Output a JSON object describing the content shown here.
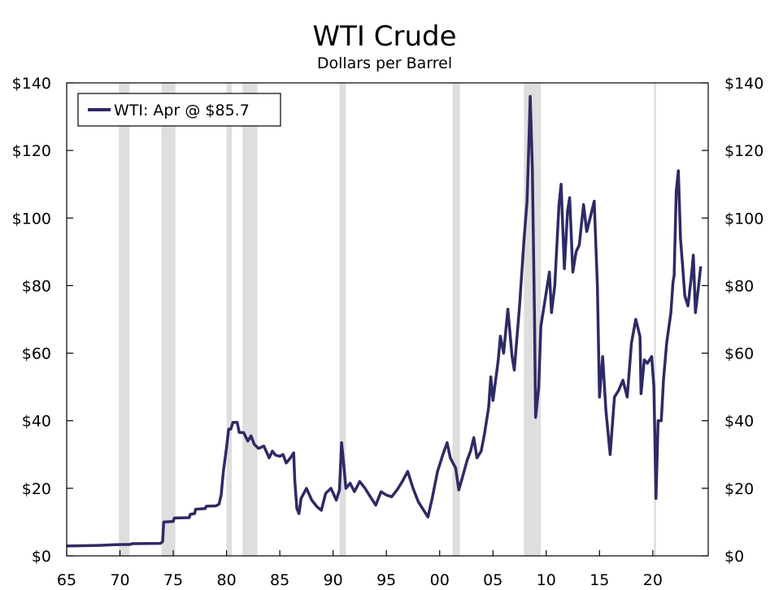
{
  "chart_data": {
    "type": "line",
    "title": "WTI Crude",
    "subtitle": "Dollars per Barrel",
    "xlabel": "",
    "ylabel": "",
    "xlim": [
      1965,
      2025.2
    ],
    "ylim": [
      0,
      140
    ],
    "y_ticks": [
      0,
      20,
      40,
      60,
      80,
      100,
      120,
      140
    ],
    "y_tick_labels": [
      "$0",
      "$20",
      "$40",
      "$60",
      "$80",
      "$100",
      "$120",
      "$140"
    ],
    "x_ticks": [
      1965,
      1970,
      1975,
      1980,
      1985,
      1990,
      1995,
      2000,
      2005,
      2010,
      2015,
      2020
    ],
    "x_tick_labels": [
      "65",
      "70",
      "75",
      "80",
      "85",
      "90",
      "95",
      "00",
      "05",
      "10",
      "15",
      "20"
    ],
    "legend": {
      "label": "WTI: Apr @ $85.7",
      "placement": "top-left"
    },
    "colors": {
      "line": "#2e2a64",
      "recession": "#dedede",
      "axis": "#000000"
    },
    "recessions": [
      [
        1969.9,
        1970.9
      ],
      [
        1973.9,
        1975.2
      ],
      [
        1980.0,
        1980.5
      ],
      [
        1981.5,
        1982.9
      ],
      [
        1990.6,
        1991.2
      ],
      [
        2001.2,
        2001.9
      ],
      [
        2007.9,
        2009.5
      ],
      [
        2020.1,
        2020.3
      ]
    ],
    "series": [
      {
        "name": "WTI",
        "points": [
          [
            1965.0,
            2.9
          ],
          [
            1968.0,
            3.1
          ],
          [
            1969.5,
            3.3
          ],
          [
            1971.0,
            3.4
          ],
          [
            1971.1,
            3.6
          ],
          [
            1973.8,
            3.7
          ],
          [
            1974.0,
            4.2
          ],
          [
            1974.1,
            10.0
          ],
          [
            1975.0,
            10.2
          ],
          [
            1975.1,
            11.2
          ],
          [
            1976.5,
            11.3
          ],
          [
            1976.6,
            12.3
          ],
          [
            1977.0,
            12.5
          ],
          [
            1977.1,
            13.8
          ],
          [
            1978.0,
            14.0
          ],
          [
            1978.1,
            14.7
          ],
          [
            1979.0,
            14.8
          ],
          [
            1979.3,
            15.3
          ],
          [
            1979.5,
            18.0
          ],
          [
            1979.7,
            25.0
          ],
          [
            1980.0,
            32.0
          ],
          [
            1980.2,
            37.5
          ],
          [
            1980.4,
            37.5
          ],
          [
            1980.6,
            39.5
          ],
          [
            1981.0,
            39.5
          ],
          [
            1981.2,
            36.5
          ],
          [
            1981.6,
            36.5
          ],
          [
            1982.0,
            34.0
          ],
          [
            1982.3,
            35.5
          ],
          [
            1982.6,
            33.0
          ],
          [
            1983.0,
            31.8
          ],
          [
            1983.5,
            32.5
          ],
          [
            1984.0,
            29.0
          ],
          [
            1984.3,
            31.0
          ],
          [
            1984.6,
            29.8
          ],
          [
            1985.0,
            29.5
          ],
          [
            1985.3,
            30.0
          ],
          [
            1985.6,
            27.5
          ],
          [
            1986.0,
            29.0
          ],
          [
            1986.3,
            30.5
          ],
          [
            1986.4,
            22.5
          ],
          [
            1986.6,
            14.0
          ],
          [
            1986.8,
            12.5
          ],
          [
            1987.0,
            17.0
          ],
          [
            1987.5,
            20.0
          ],
          [
            1988.0,
            16.5
          ],
          [
            1988.5,
            14.5
          ],
          [
            1988.9,
            13.5
          ],
          [
            1989.3,
            18.5
          ],
          [
            1989.8,
            20.0
          ],
          [
            1990.3,
            16.5
          ],
          [
            1990.6,
            19.5
          ],
          [
            1990.8,
            33.5
          ],
          [
            1991.0,
            27.0
          ],
          [
            1991.2,
            20.0
          ],
          [
            1991.6,
            21.5
          ],
          [
            1992.0,
            19.0
          ],
          [
            1992.5,
            22.0
          ],
          [
            1993.0,
            20.0
          ],
          [
            1993.5,
            17.5
          ],
          [
            1994.0,
            15.0
          ],
          [
            1994.5,
            19.0
          ],
          [
            1995.0,
            18.0
          ],
          [
            1995.5,
            17.5
          ],
          [
            1996.0,
            19.5
          ],
          [
            1996.5,
            22.0
          ],
          [
            1997.0,
            25.0
          ],
          [
            1997.5,
            20.0
          ],
          [
            1998.0,
            16.0
          ],
          [
            1998.5,
            13.5
          ],
          [
            1998.9,
            11.5
          ],
          [
            1999.3,
            17.0
          ],
          [
            1999.8,
            25.0
          ],
          [
            2000.3,
            30.0
          ],
          [
            2000.7,
            33.5
          ],
          [
            2001.0,
            29.0
          ],
          [
            2001.5,
            26.0
          ],
          [
            2001.8,
            19.5
          ],
          [
            2002.2,
            24.0
          ],
          [
            2002.6,
            28.5
          ],
          [
            2002.9,
            31.0
          ],
          [
            2003.2,
            35.0
          ],
          [
            2003.5,
            29.0
          ],
          [
            2003.9,
            31.0
          ],
          [
            2004.2,
            36.0
          ],
          [
            2004.6,
            44.0
          ],
          [
            2004.8,
            53.0
          ],
          [
            2005.0,
            46.0
          ],
          [
            2005.5,
            58.0
          ],
          [
            2005.7,
            65.0
          ],
          [
            2006.0,
            60.0
          ],
          [
            2006.4,
            73.0
          ],
          [
            2006.8,
            59.0
          ],
          [
            2007.0,
            55.0
          ],
          [
            2007.5,
            74.0
          ],
          [
            2007.9,
            93.0
          ],
          [
            2008.2,
            105.0
          ],
          [
            2008.4,
            125.0
          ],
          [
            2008.5,
            136.0
          ],
          [
            2008.7,
            115.0
          ],
          [
            2008.9,
            70.0
          ],
          [
            2009.0,
            41.0
          ],
          [
            2009.3,
            50.0
          ],
          [
            2009.5,
            68.0
          ],
          [
            2009.9,
            76.0
          ],
          [
            2010.3,
            84.0
          ],
          [
            2010.5,
            72.0
          ],
          [
            2010.8,
            80.0
          ],
          [
            2011.2,
            104.0
          ],
          [
            2011.4,
            110.0
          ],
          [
            2011.7,
            85.0
          ],
          [
            2012.0,
            102.0
          ],
          [
            2012.2,
            106.0
          ],
          [
            2012.5,
            84.0
          ],
          [
            2012.8,
            90.0
          ],
          [
            2013.1,
            92.0
          ],
          [
            2013.5,
            104.0
          ],
          [
            2013.8,
            96.0
          ],
          [
            2014.2,
            101.0
          ],
          [
            2014.5,
            105.0
          ],
          [
            2014.8,
            80.0
          ],
          [
            2015.0,
            47.0
          ],
          [
            2015.3,
            59.0
          ],
          [
            2015.6,
            43.0
          ],
          [
            2016.0,
            30.0
          ],
          [
            2016.4,
            47.0
          ],
          [
            2016.8,
            49.0
          ],
          [
            2017.2,
            52.0
          ],
          [
            2017.6,
            47.0
          ],
          [
            2018.0,
            63.0
          ],
          [
            2018.4,
            70.0
          ],
          [
            2018.8,
            65.0
          ],
          [
            2018.9,
            48.0
          ],
          [
            2019.2,
            58.0
          ],
          [
            2019.5,
            57.0
          ],
          [
            2019.9,
            59.0
          ],
          [
            2020.1,
            50.0
          ],
          [
            2020.3,
            17.0
          ],
          [
            2020.5,
            40.0
          ],
          [
            2020.8,
            40.0
          ],
          [
            2021.0,
            52.0
          ],
          [
            2021.3,
            63.0
          ],
          [
            2021.7,
            72.0
          ],
          [
            2021.9,
            81.0
          ],
          [
            2022.0,
            83.0
          ],
          [
            2022.2,
            108.0
          ],
          [
            2022.4,
            114.0
          ],
          [
            2022.6,
            94.0
          ],
          [
            2022.8,
            86.0
          ],
          [
            2023.0,
            77.0
          ],
          [
            2023.3,
            74.0
          ],
          [
            2023.6,
            82.0
          ],
          [
            2023.8,
            89.0
          ],
          [
            2024.0,
            72.0
          ],
          [
            2024.3,
            80.0
          ],
          [
            2024.5,
            85.7
          ]
        ]
      }
    ]
  }
}
